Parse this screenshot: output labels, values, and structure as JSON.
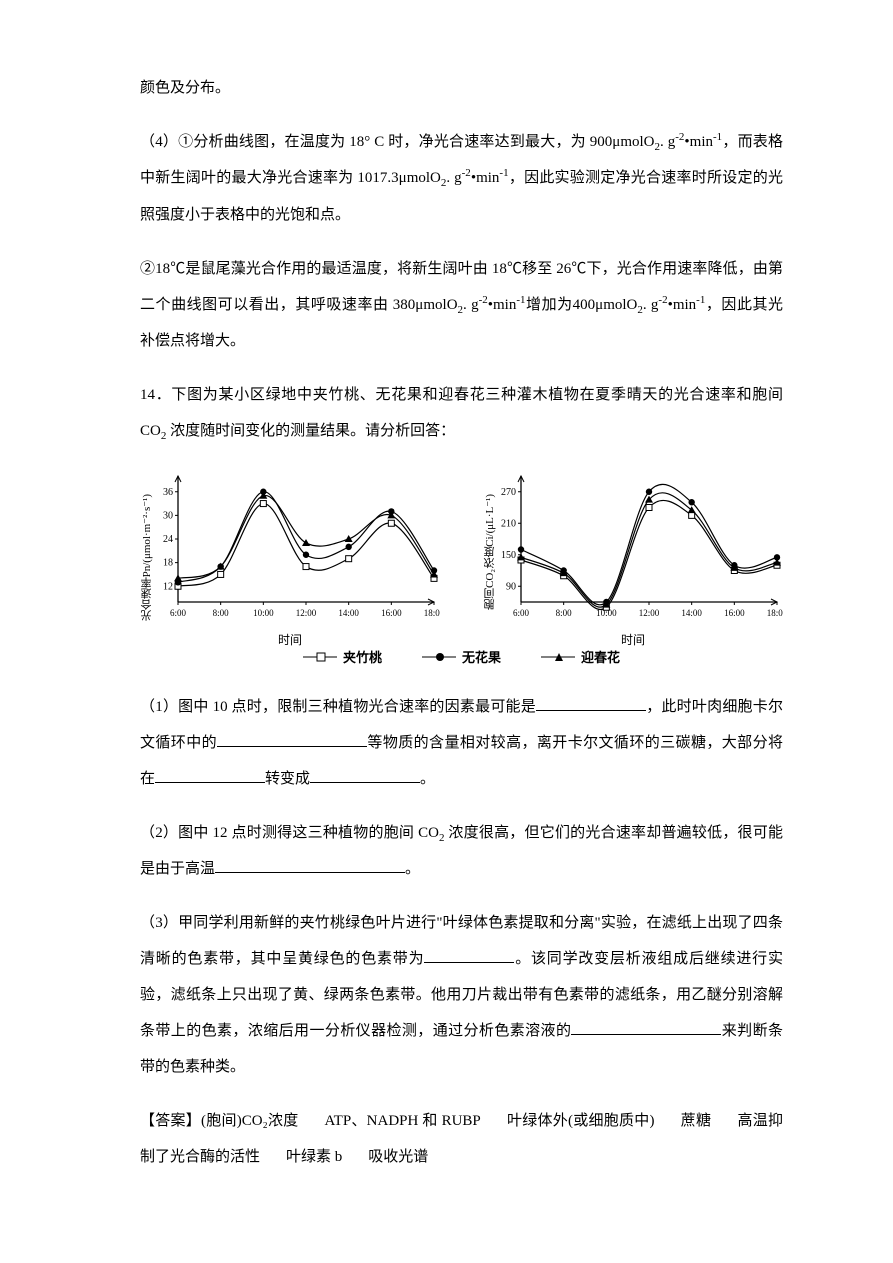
{
  "p_frag": "颜色及分布。",
  "p4": {
    "lead": "（4）①分析曲线图，在温度为 18° C 时，净光合速率达到最大，为 900μmolO",
    "sub1": "2",
    "unit1a": ". g",
    "sup1": "-2",
    "dot": "•",
    "min": "min",
    "supM1": "-1",
    "mid": "，而表格中新生阔叶的最大净光合速率为 1017.3μmolO",
    "sub2": "2",
    "unit2a": ". g",
    "sup2": "-2",
    "min2": "•min",
    "supM2": "-1",
    "tail": "，因此实验测定净光合速率时所设定的光照强度小于表格中的光饱和点。"
  },
  "p4b": {
    "lead": "②18℃是鼠尾藻光合作用的最适温度，将新生阔叶由 18℃移至 26℃下，光合作用速率降低，由第二个曲线图可以看出，其呼吸速率由 380μmolO",
    "sub1": "2",
    "unit1": ". g",
    "sup1": "-2",
    "bm1": "•min",
    "supM1": "-1",
    "mid": "增加为400μmolO",
    "sub2": "2",
    "unit2": ". g",
    "sup2": "-2",
    "bm2": "•min",
    "supM2": "-1",
    "tail": "，因此其光补偿点将增大。"
  },
  "q14": {
    "lead": "14．下图为某小区绿地中夹竹桃、无花果和迎春花三种灌木植物在夏季晴天的光合速率和胞间 CO",
    "sub": "2",
    "tail": " 浓度随时间变化的测量结果。请分析回答："
  },
  "charts": {
    "xTicks": [
      "6:00",
      "8:00",
      "10:00",
      "12:00",
      "14:00",
      "16:00",
      "18:00"
    ],
    "xlabel": "时间",
    "colors": {
      "axis": "#000000",
      "series": "#000000"
    },
    "left": {
      "ylabel": "光合速率Pn/(μmol·m⁻²·s⁻¹)",
      "yTicks": [
        12,
        18,
        24,
        30,
        36
      ],
      "ylim": [
        8,
        40
      ],
      "series": {
        "jzt": [
          12,
          15,
          33,
          17,
          19,
          28,
          14
        ],
        "whg": [
          13,
          17,
          36,
          20,
          22,
          31,
          16
        ],
        "ych": [
          14,
          17,
          35,
          23,
          24,
          30,
          15
        ]
      }
    },
    "right": {
      "ylabel": "胞间CO₂浓度Ci/(μL·L⁻¹)",
      "yTicks": [
        90,
        150,
        210,
        270
      ],
      "ylim": [
        60,
        300
      ],
      "series": {
        "jzt": [
          140,
          110,
          50,
          240,
          225,
          120,
          130
        ],
        "whg": [
          160,
          120,
          60,
          270,
          250,
          130,
          145
        ],
        "ych": [
          145,
          115,
          55,
          255,
          235,
          125,
          135
        ]
      }
    },
    "legend": {
      "jzt": "夹竹桃",
      "whg": "无花果",
      "ych": "迎春花"
    }
  },
  "q14_1": {
    "a": "（1）图中 10 点时，限制三种植物光合速率的因素最可能是",
    "b": "，此时叶肉细胞卡尔文循环中的",
    "c": "等物质的含量相对较高，离开卡尔文循环的三碳糖，大部分将在",
    "d": "转变成",
    "e": "。"
  },
  "q14_2": {
    "a": "（2）图中 12 点时测得这三种植物的胞间 CO",
    "sub": "2",
    "b": " 浓度很高，但它们的光合速率却普遍较低，很可能是由于高温",
    "c": "。"
  },
  "q14_3": {
    "a": "（3）甲同学利用新鲜的夹竹桃绿色叶片进行\"叶绿体色素提取和分离\"实验，在滤纸上出现了四条清晰的色素带，其中呈黄绿色的色素带为",
    "b": "。该同学改变层析液组成后继续进行实验，滤纸条上只出现了黄、绿两条色素带。他用刀片裁出带有色素带的滤纸条，用乙醚分别溶解条带上的色素，浓缩后用一分析仪器检测，通过分析色素溶液的",
    "c": "来判断条带的色素种类。"
  },
  "answer": {
    "label": "【答案】",
    "items": [
      "(胞间)CO₂浓度",
      "ATP、NADPH 和 RUBP",
      "叶绿体外(或细胞质中)",
      "蔗糖",
      "高温抑制了光合酶的活性",
      "叶绿素 b",
      "吸收光谱"
    ]
  }
}
